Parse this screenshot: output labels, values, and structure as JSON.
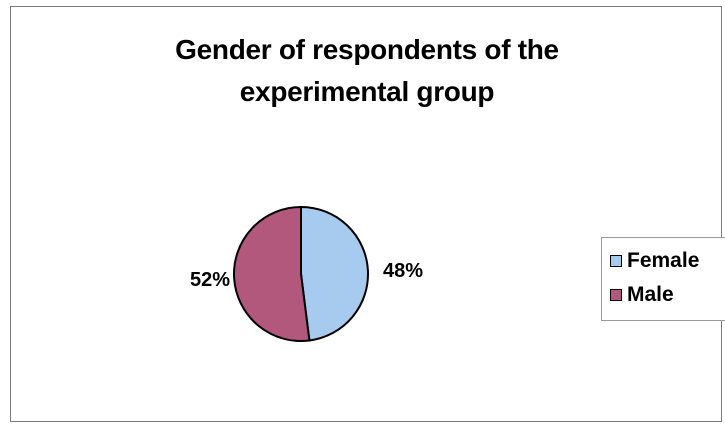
{
  "chart_data": {
    "type": "pie",
    "title": "Gender of respondents of the experimental group",
    "slices": [
      {
        "name": "Female",
        "value": 48,
        "label": "48%",
        "color": "#a6cbee"
      },
      {
        "name": "Male",
        "value": 52,
        "label": "52%",
        "color": "#b2587c"
      }
    ],
    "legend_position": "right"
  },
  "title_line1": "Gender of respondents of the",
  "title_line2": "experimental group"
}
